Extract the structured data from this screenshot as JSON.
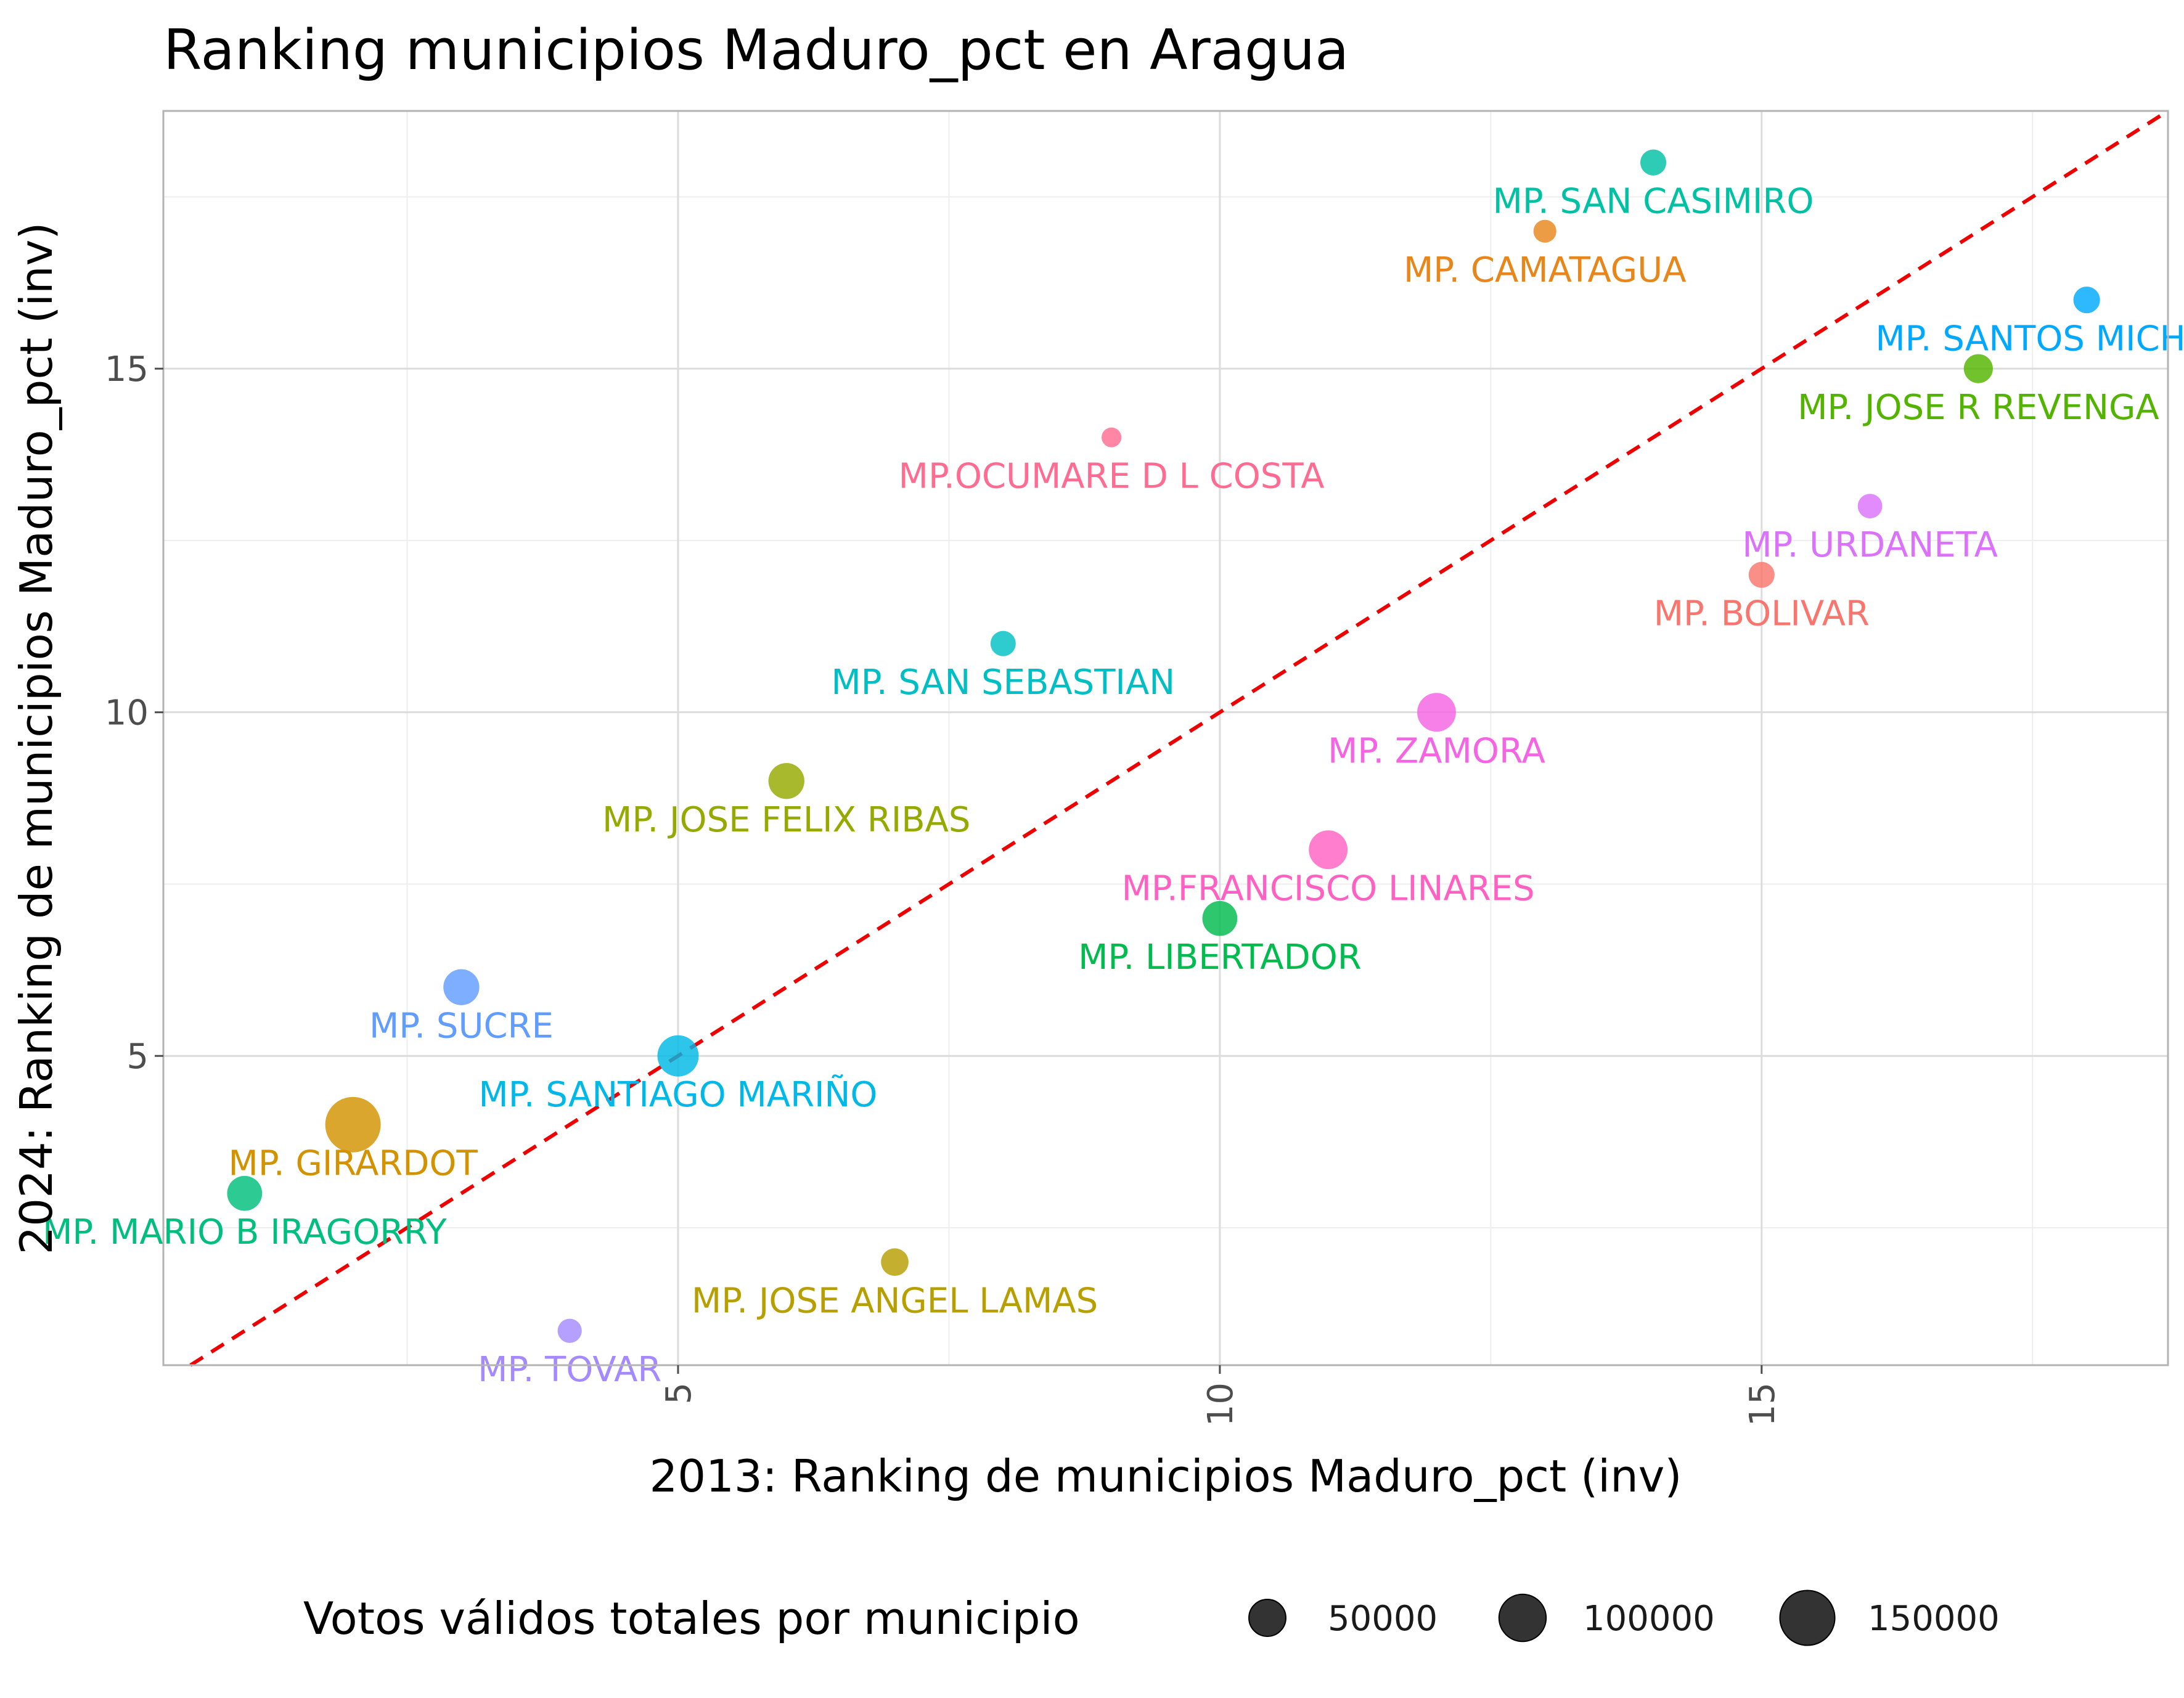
{
  "chart_data": {
    "type": "scatter",
    "title": "Ranking municipios Maduro_pct en Aragua",
    "xlabel": "2013: Ranking de municipios Maduro_pct (inv)",
    "ylabel": "2024: Ranking de municipios Maduro_pct (inv)",
    "xlim": [
      0.25,
      18.75
    ],
    "ylim": [
      0.5,
      18.75
    ],
    "x_ticks": [
      5,
      10,
      15
    ],
    "y_ticks": [
      5,
      10,
      15
    ],
    "grid": true,
    "reference_line": {
      "slope": 1,
      "intercept": 0,
      "style": "dashed",
      "color": "#ee0000"
    },
    "legend": {
      "title": "Votos válidos totales por municipio",
      "position": "bottom",
      "items": [
        {
          "label": "50000",
          "value": 50000
        },
        {
          "label": "100000",
          "value": 100000
        },
        {
          "label": "150000",
          "value": 150000
        }
      ]
    },
    "points": [
      {
        "name": "MP. BOLIVAR",
        "x": 15,
        "y": 12,
        "votes": 20000,
        "color": "#F8766D"
      },
      {
        "name": "MP. CAMATAGUA",
        "x": 13,
        "y": 17,
        "votes": 12000,
        "color": "#E7861B"
      },
      {
        "name": "MP. GIRARDOT",
        "x": 2,
        "y": 4,
        "votes": 200000,
        "color": "#D39200"
      },
      {
        "name": "MP. JOSE ANGEL LAMAS",
        "x": 7,
        "y": 2,
        "votes": 25000,
        "color": "#B79F00"
      },
      {
        "name": "MP. JOSE FELIX RIBAS",
        "x": 6,
        "y": 9,
        "votes": 60000,
        "color": "#95A900"
      },
      {
        "name": "MP. JOSE R REVENGA",
        "x": 17,
        "y": 15,
        "votes": 30000,
        "color": "#53B400"
      },
      {
        "name": "MP. LIBERTADOR",
        "x": 10,
        "y": 7,
        "votes": 55000,
        "color": "#00BB4E"
      },
      {
        "name": "MP. MARIO B IRAGORRY",
        "x": 1,
        "y": 3,
        "votes": 55000,
        "color": "#00BE7D"
      },
      {
        "name": "MP. SAN CASIMIRO",
        "x": 14,
        "y": 18,
        "votes": 20000,
        "color": "#00C1A3"
      },
      {
        "name": "MP. SAN SEBASTIAN",
        "x": 8,
        "y": 11,
        "votes": 18000,
        "color": "#00BFC4"
      },
      {
        "name": "MP. SANTIAGO MARIÑO",
        "x": 5,
        "y": 5,
        "votes": 90000,
        "color": "#00B8E7"
      },
      {
        "name": "MP. SANTOS MICHELENA",
        "x": 18,
        "y": 16,
        "votes": 22000,
        "color": "#00A9FF"
      },
      {
        "name": "MP. SUCRE",
        "x": 3,
        "y": 6,
        "votes": 60000,
        "color": "#619CFF"
      },
      {
        "name": "MP. TOVAR",
        "x": 4,
        "y": 1,
        "votes": 15000,
        "color": "#A58AFF"
      },
      {
        "name": "MP. URDANETA",
        "x": 16,
        "y": 13,
        "votes": 16000,
        "color": "#DB72FB"
      },
      {
        "name": "MP. ZAMORA",
        "x": 12,
        "y": 10,
        "votes": 75000,
        "color": "#F564E3"
      },
      {
        "name": "MP.FRANCISCO LINARES",
        "x": 11,
        "y": 8,
        "votes": 75000,
        "color": "#FF61C3"
      },
      {
        "name": "MP.OCUMARE D L COSTA",
        "x": 9,
        "y": 14,
        "votes": 6000,
        "color": "#FF6C91"
      }
    ]
  }
}
